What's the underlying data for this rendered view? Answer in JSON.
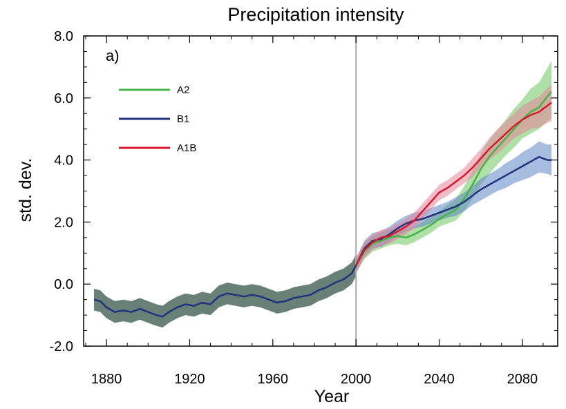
{
  "chart_data": {
    "type": "line",
    "title": "Precipitation intensity",
    "panel_label": "a)",
    "xlabel": "Year",
    "ylabel": "std. dev.",
    "xlim": [
      1869,
      2097
    ],
    "ylim": [
      -2.0,
      8.0
    ],
    "x_ticks": [
      1880,
      1920,
      1960,
      2000,
      2040,
      2080
    ],
    "x_tick_labels": [
      "1880",
      "1920",
      "1960",
      "2000",
      "2040",
      "2080"
    ],
    "y_ticks": [
      -2.0,
      0.0,
      2.0,
      4.0,
      6.0,
      8.0
    ],
    "y_tick_labels": [
      "-2.0",
      "0.0",
      "2.0",
      "4.0",
      "6.0",
      "8.0"
    ],
    "vertical_reference_line_x": 2000,
    "grid": false,
    "legend_position": "top-left",
    "colors": {
      "A2": "#44b544",
      "B1": "#22327f",
      "A1B": "#d9182b",
      "historical": "#22327f",
      "historical_band": "#4f6a5f",
      "vline": "#aaaaaa"
    },
    "band_colors": {
      "A2": "#6cc75e",
      "B1": "#5f86c5",
      "A1B": "#e8839a"
    },
    "legend": [
      "A2",
      "B1",
      "A1B"
    ],
    "historical": {
      "x": [
        1874,
        1877,
        1880,
        1884,
        1888,
        1892,
        1896,
        1900,
        1904,
        1907,
        1910,
        1914,
        1918,
        1922,
        1926,
        1930,
        1934,
        1938,
        1942,
        1946,
        1950,
        1954,
        1958,
        1962,
        1966,
        1970,
        1974,
        1978,
        1982,
        1986,
        1990,
        1994,
        1998,
        2000
      ],
      "y": [
        -0.5,
        -0.55,
        -0.75,
        -0.9,
        -0.85,
        -0.9,
        -0.8,
        -0.9,
        -1.0,
        -1.05,
        -0.9,
        -0.75,
        -0.65,
        -0.7,
        -0.6,
        -0.65,
        -0.4,
        -0.3,
        -0.35,
        -0.4,
        -0.35,
        -0.4,
        -0.5,
        -0.6,
        -0.55,
        -0.45,
        -0.4,
        -0.35,
        -0.2,
        -0.1,
        0.05,
        0.15,
        0.35,
        0.6
      ],
      "band_half_width": 0.35
    },
    "series": [
      {
        "name": "A2",
        "x": [
          2000,
          2004,
          2008,
          2012,
          2016,
          2020,
          2024,
          2028,
          2032,
          2036,
          2040,
          2044,
          2048,
          2052,
          2056,
          2060,
          2064,
          2068,
          2072,
          2076,
          2080,
          2084,
          2088,
          2092,
          2094
        ],
        "y": [
          0.6,
          1.05,
          1.3,
          1.4,
          1.5,
          1.55,
          1.5,
          1.6,
          1.75,
          1.9,
          2.1,
          2.25,
          2.4,
          2.75,
          3.2,
          3.7,
          4.1,
          4.4,
          4.7,
          5.0,
          5.3,
          5.55,
          5.7,
          6.05,
          6.2
        ],
        "band_lower": [
          0.35,
          0.8,
          1.05,
          1.15,
          1.25,
          1.3,
          1.25,
          1.35,
          1.5,
          1.65,
          1.85,
          1.95,
          2.05,
          2.35,
          2.75,
          3.2,
          3.55,
          3.85,
          4.15,
          4.4,
          4.7,
          4.85,
          5.0,
          5.25,
          5.35
        ],
        "band_upper": [
          0.85,
          1.3,
          1.55,
          1.65,
          1.75,
          1.8,
          1.75,
          1.85,
          2.0,
          2.15,
          2.35,
          2.55,
          2.75,
          3.15,
          3.65,
          4.2,
          4.65,
          4.95,
          5.3,
          5.65,
          5.95,
          6.3,
          6.5,
          6.95,
          7.2
        ]
      },
      {
        "name": "B1",
        "x": [
          2000,
          2004,
          2008,
          2012,
          2016,
          2020,
          2024,
          2028,
          2032,
          2036,
          2040,
          2044,
          2048,
          2052,
          2056,
          2060,
          2064,
          2068,
          2072,
          2076,
          2080,
          2084,
          2088,
          2092,
          2094
        ],
        "y": [
          0.6,
          1.15,
          1.4,
          1.45,
          1.6,
          1.8,
          1.95,
          2.05,
          2.1,
          2.2,
          2.3,
          2.4,
          2.5,
          2.65,
          2.85,
          3.05,
          3.2,
          3.35,
          3.5,
          3.65,
          3.8,
          3.95,
          4.1,
          4.0,
          4.0
        ],
        "band_lower": [
          0.4,
          0.9,
          1.15,
          1.2,
          1.35,
          1.55,
          1.7,
          1.8,
          1.85,
          1.95,
          2.05,
          2.15,
          2.2,
          2.35,
          2.55,
          2.7,
          2.85,
          3.0,
          3.1,
          3.25,
          3.35,
          3.45,
          3.6,
          3.55,
          3.5
        ],
        "band_upper": [
          0.8,
          1.4,
          1.65,
          1.7,
          1.85,
          2.05,
          2.2,
          2.3,
          2.35,
          2.45,
          2.55,
          2.65,
          2.8,
          2.95,
          3.15,
          3.4,
          3.55,
          3.7,
          3.9,
          4.05,
          4.25,
          4.4,
          4.6,
          4.5,
          4.5
        ]
      },
      {
        "name": "A1B",
        "x": [
          2000,
          2004,
          2008,
          2012,
          2016,
          2020,
          2024,
          2028,
          2032,
          2036,
          2040,
          2044,
          2048,
          2052,
          2056,
          2060,
          2064,
          2068,
          2072,
          2076,
          2080,
          2084,
          2088,
          2092,
          2094
        ],
        "y": [
          0.6,
          1.1,
          1.35,
          1.5,
          1.55,
          1.7,
          1.85,
          2.05,
          2.35,
          2.65,
          2.95,
          3.1,
          3.3,
          3.5,
          3.75,
          4.05,
          4.35,
          4.6,
          4.85,
          5.1,
          5.3,
          5.45,
          5.55,
          5.75,
          5.85
        ],
        "band_lower": [
          0.35,
          0.85,
          1.1,
          1.25,
          1.3,
          1.45,
          1.6,
          1.8,
          2.1,
          2.4,
          2.7,
          2.85,
          3.05,
          3.25,
          3.45,
          3.75,
          4.0,
          4.2,
          4.45,
          4.7,
          4.85,
          5.0,
          5.05,
          5.2,
          5.25
        ],
        "band_upper": [
          0.85,
          1.35,
          1.6,
          1.75,
          1.8,
          1.95,
          2.1,
          2.3,
          2.6,
          2.9,
          3.2,
          3.35,
          3.55,
          3.75,
          4.05,
          4.35,
          4.7,
          5.0,
          5.25,
          5.5,
          5.75,
          5.9,
          6.05,
          6.3,
          6.45
        ]
      }
    ]
  }
}
